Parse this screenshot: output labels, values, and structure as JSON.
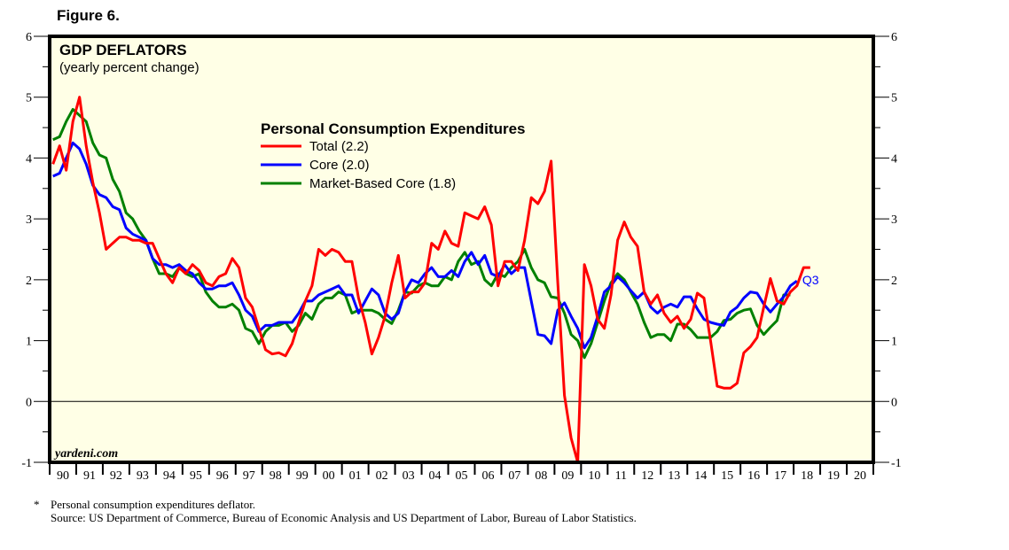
{
  "figure_label": "Figure 6.",
  "footnote_marker": "*",
  "footnote": "Personal consumption expenditures deflator.",
  "source": "Source: US Department of Commerce, Bureau of Economic Analysis and US Department of Labor, Bureau of Labor Statistics.",
  "watermark": "yardeni.com",
  "chart_data": {
    "type": "line",
    "title": "GDP DEFLATORS",
    "subtitle": "(yearly percent change)",
    "legend_title": "Personal Consumption Expenditures",
    "legend_placement": "top-center",
    "xlabel": "",
    "ylabel": "",
    "ylim": [
      -1,
      6
    ],
    "xlim": [
      1990,
      2021
    ],
    "grid": false,
    "zero_line": true,
    "yticks": [
      "-1",
      "0",
      "1",
      "2",
      "3",
      "4",
      "5",
      "6"
    ],
    "xtick_labels": [
      "90",
      "91",
      "92",
      "93",
      "94",
      "95",
      "96",
      "97",
      "98",
      "99",
      "00",
      "01",
      "02",
      "03",
      "04",
      "05",
      "06",
      "07",
      "08",
      "09",
      "10",
      "11",
      "12",
      "13",
      "14",
      "15",
      "16",
      "17",
      "18",
      "19",
      "20"
    ],
    "frequency": "quarterly",
    "start": "1990Q1",
    "end_annotation": "Q3",
    "series": [
      {
        "name": "Total (2.2)",
        "color": "#ff0000",
        "values": [
          3.9,
          4.2,
          3.8,
          4.6,
          5.0,
          4.2,
          3.6,
          3.1,
          2.5,
          2.6,
          2.7,
          2.7,
          2.65,
          2.65,
          2.6,
          2.6,
          2.35,
          2.1,
          1.95,
          2.2,
          2.1,
          2.25,
          2.15,
          1.95,
          1.9,
          2.05,
          2.1,
          2.35,
          2.2,
          1.7,
          1.55,
          1.2,
          0.85,
          0.78,
          0.8,
          0.75,
          0.95,
          1.3,
          1.65,
          1.9,
          2.5,
          2.4,
          2.5,
          2.45,
          2.3,
          2.3,
          1.7,
          1.3,
          0.78,
          1.05,
          1.4,
          1.95,
          2.4,
          1.7,
          1.8,
          1.8,
          1.95,
          2.6,
          2.5,
          2.8,
          2.6,
          2.55,
          3.1,
          3.05,
          3.0,
          3.2,
          2.9,
          1.9,
          2.3,
          2.3,
          2.15,
          2.65,
          3.35,
          3.25,
          3.45,
          3.95,
          1.95,
          0.1,
          -0.6,
          -1.0,
          2.25,
          1.9,
          1.35,
          1.2,
          1.75,
          2.65,
          2.95,
          2.7,
          2.55,
          1.8,
          1.6,
          1.75,
          1.45,
          1.3,
          1.4,
          1.2,
          1.35,
          1.78,
          1.7,
          1.0,
          0.25,
          0.22,
          0.22,
          0.3,
          0.8,
          0.9,
          1.05,
          1.55,
          2.02,
          1.65,
          1.6,
          1.8,
          1.9,
          2.2,
          2.2
        ]
      },
      {
        "name": "Core (2.0)",
        "color": "#0000ff",
        "values": [
          3.7,
          3.75,
          4.0,
          4.25,
          4.15,
          3.9,
          3.55,
          3.4,
          3.35,
          3.2,
          3.15,
          2.85,
          2.75,
          2.7,
          2.65,
          2.35,
          2.25,
          2.25,
          2.2,
          2.25,
          2.15,
          2.1,
          1.95,
          1.85,
          1.85,
          1.9,
          1.9,
          1.95,
          1.75,
          1.5,
          1.4,
          1.15,
          1.25,
          1.25,
          1.3,
          1.3,
          1.3,
          1.45,
          1.65,
          1.65,
          1.75,
          1.8,
          1.85,
          1.9,
          1.75,
          1.75,
          1.45,
          1.65,
          1.85,
          1.75,
          1.45,
          1.35,
          1.45,
          1.8,
          2.0,
          1.95,
          2.1,
          2.2,
          2.05,
          2.05,
          2.15,
          2.05,
          2.3,
          2.45,
          2.25,
          2.4,
          2.1,
          2.05,
          2.25,
          2.1,
          2.2,
          2.2,
          1.65,
          1.1,
          1.08,
          0.95,
          1.5,
          1.62,
          1.4,
          1.2,
          0.88,
          1.05,
          1.4,
          1.8,
          1.9,
          2.05,
          1.95,
          1.82,
          1.7,
          1.8,
          1.55,
          1.45,
          1.55,
          1.6,
          1.55,
          1.72,
          1.72,
          1.52,
          1.35,
          1.3,
          1.27,
          1.25,
          1.47,
          1.55,
          1.7,
          1.8,
          1.78,
          1.6,
          1.47,
          1.6,
          1.72,
          1.9,
          1.98
        ]
      },
      {
        "name": "Market-Based Core (1.8)",
        "color": "#008000",
        "values": [
          4.3,
          4.35,
          4.6,
          4.8,
          4.7,
          4.6,
          4.25,
          4.05,
          4.0,
          3.65,
          3.45,
          3.1,
          3.0,
          2.8,
          2.65,
          2.35,
          2.1,
          2.1,
          2.05,
          2.2,
          2.1,
          2.05,
          2.1,
          1.8,
          1.65,
          1.55,
          1.55,
          1.6,
          1.5,
          1.2,
          1.15,
          0.95,
          1.15,
          1.25,
          1.25,
          1.3,
          1.15,
          1.25,
          1.45,
          1.35,
          1.6,
          1.7,
          1.7,
          1.8,
          1.75,
          1.45,
          1.5,
          1.5,
          1.5,
          1.45,
          1.35,
          1.28,
          1.5,
          1.8,
          1.78,
          1.9,
          1.95,
          1.9,
          1.9,
          2.05,
          2.0,
          2.3,
          2.45,
          2.25,
          2.3,
          2.0,
          1.9,
          2.1,
          2.05,
          2.2,
          2.3,
          2.5,
          2.2,
          2.0,
          1.95,
          1.72,
          1.7,
          1.45,
          1.1,
          1.0,
          0.72,
          0.95,
          1.3,
          1.65,
          1.95,
          2.1,
          2.0,
          1.8,
          1.6,
          1.3,
          1.05,
          1.1,
          1.1,
          1.0,
          1.27,
          1.27,
          1.18,
          1.05,
          1.05,
          1.05,
          1.15,
          1.33,
          1.35,
          1.45,
          1.5,
          1.52,
          1.25,
          1.1,
          1.22,
          1.33,
          1.75,
          1.75
        ]
      }
    ]
  }
}
